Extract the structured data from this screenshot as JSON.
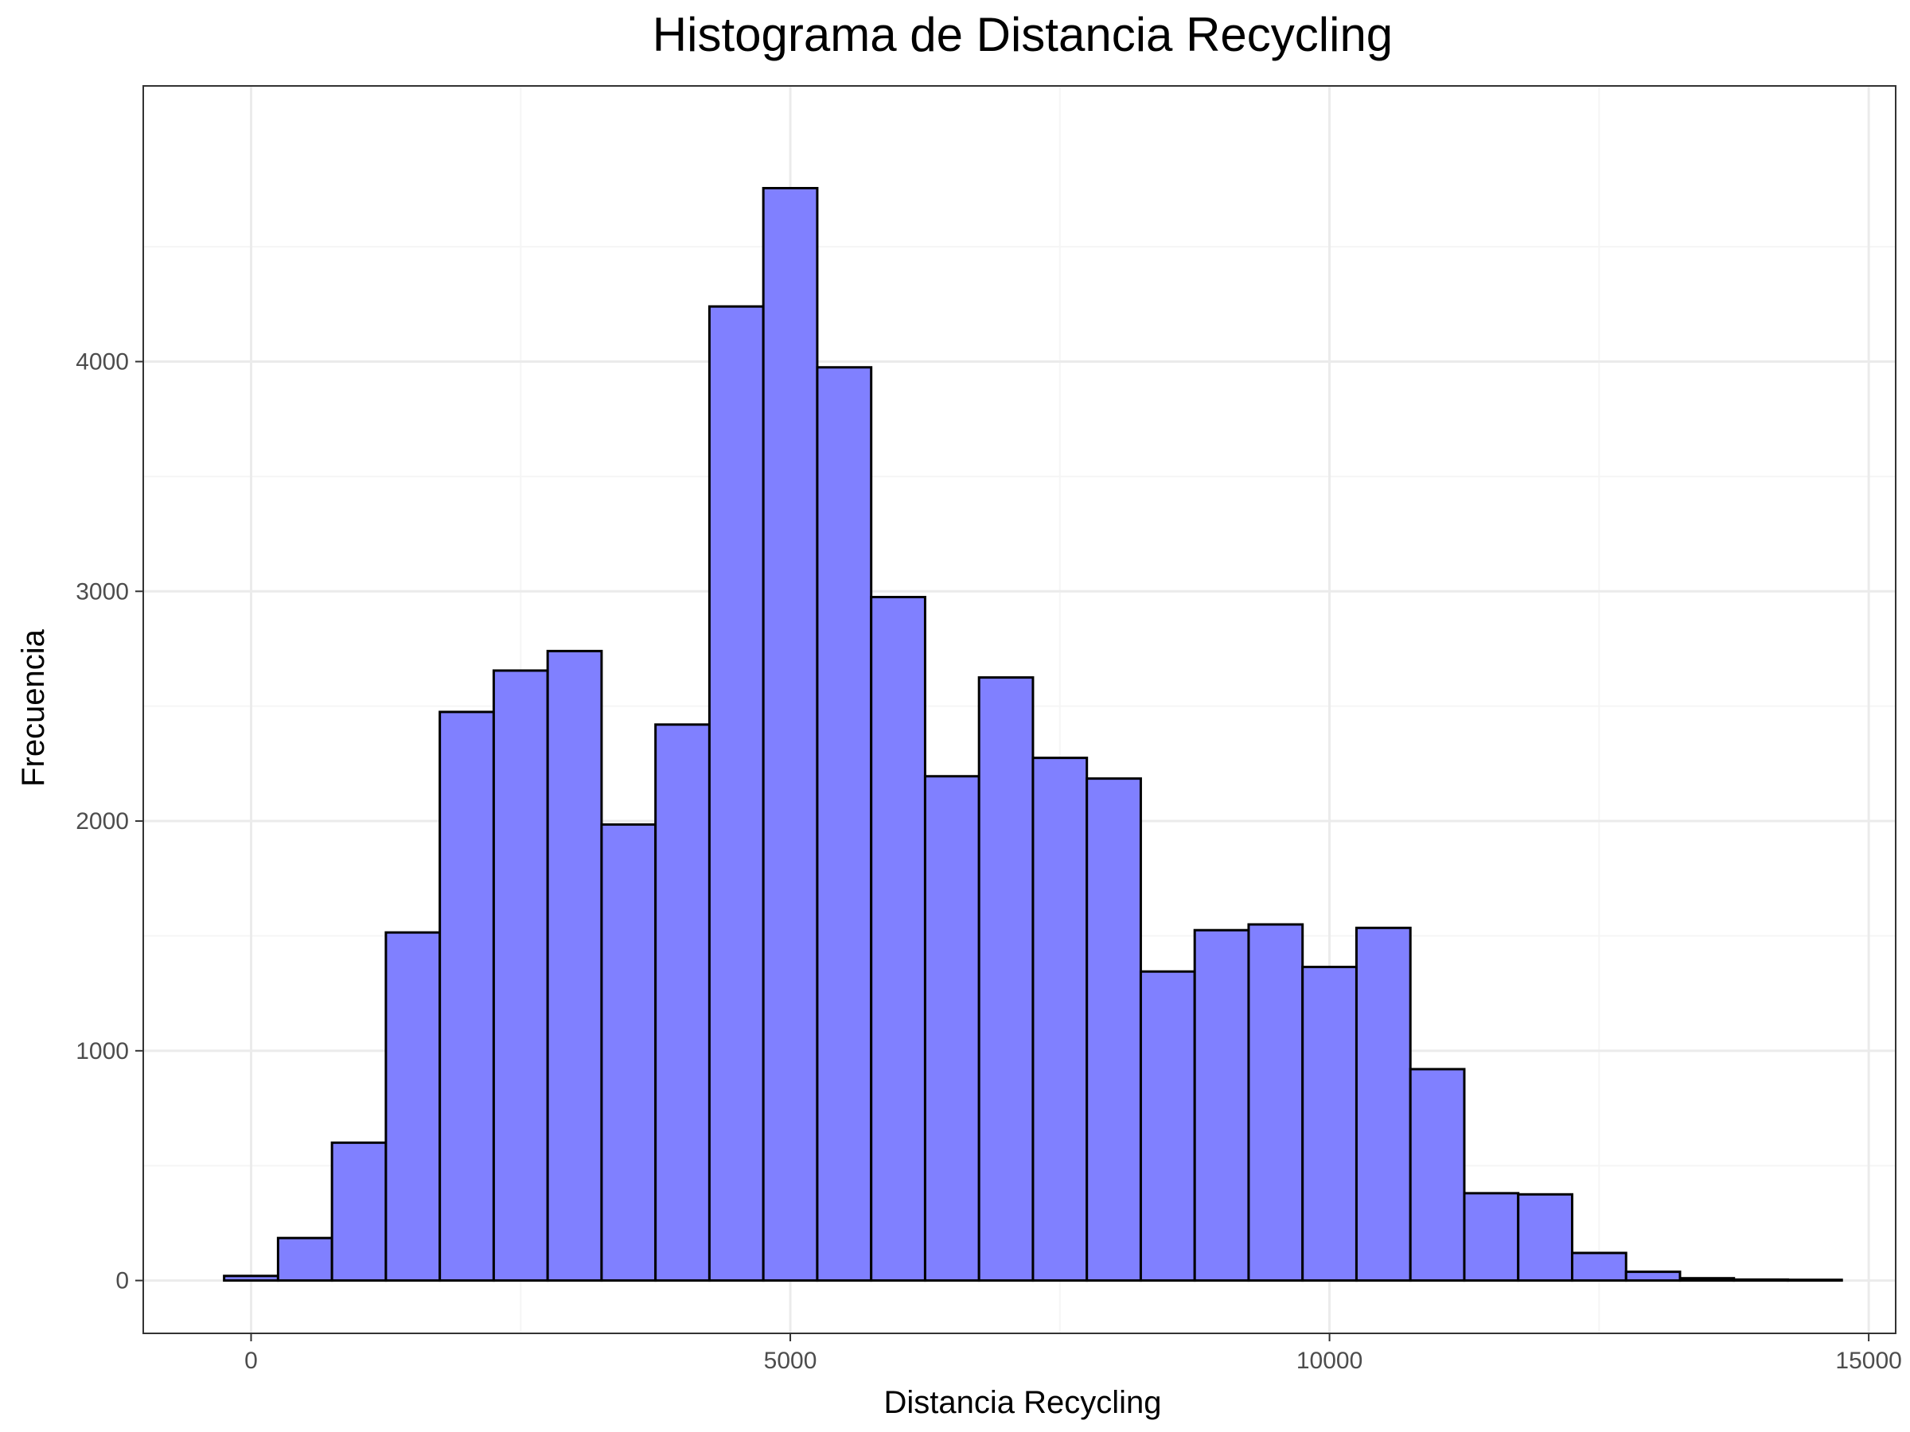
{
  "chart_data": {
    "type": "bar",
    "title": "Histograma de Distancia Recycling",
    "xlabel": "Distancia Recycling",
    "ylabel": "Frecuencia",
    "xlim": [
      -1000,
      15250
    ],
    "ylim": [
      -230,
      5200
    ],
    "x_ticks": [
      0,
      5000,
      10000,
      15000
    ],
    "y_ticks": [
      0,
      1000,
      2000,
      3000,
      4000
    ],
    "x_tick_labels": [
      "0",
      "5000",
      "10000",
      "15000"
    ],
    "y_tick_labels": [
      "0",
      "1000",
      "2000",
      "3000",
      "4000"
    ],
    "grid": true,
    "legend": "none",
    "bin_width": 500,
    "bins": [
      {
        "x_start": -250,
        "x_end": 250,
        "count": 20
      },
      {
        "x_start": 250,
        "x_end": 750,
        "count": 185
      },
      {
        "x_start": 750,
        "x_end": 1250,
        "count": 600
      },
      {
        "x_start": 1250,
        "x_end": 1750,
        "count": 1515
      },
      {
        "x_start": 1750,
        "x_end": 2250,
        "count": 2475
      },
      {
        "x_start": 2250,
        "x_end": 2750,
        "count": 2655
      },
      {
        "x_start": 2750,
        "x_end": 3250,
        "count": 2740
      },
      {
        "x_start": 3250,
        "x_end": 3750,
        "count": 1985
      },
      {
        "x_start": 3750,
        "x_end": 4250,
        "count": 2420
      },
      {
        "x_start": 4250,
        "x_end": 4750,
        "count": 4240
      },
      {
        "x_start": 4750,
        "x_end": 5250,
        "count": 4755
      },
      {
        "x_start": 5250,
        "x_end": 5750,
        "count": 3975
      },
      {
        "x_start": 5750,
        "x_end": 6250,
        "count": 2975
      },
      {
        "x_start": 6250,
        "x_end": 6750,
        "count": 2195
      },
      {
        "x_start": 6750,
        "x_end": 7250,
        "count": 2625
      },
      {
        "x_start": 7250,
        "x_end": 7750,
        "count": 2275
      },
      {
        "x_start": 7750,
        "x_end": 8250,
        "count": 2185
      },
      {
        "x_start": 8250,
        "x_end": 8750,
        "count": 1345
      },
      {
        "x_start": 8750,
        "x_end": 9250,
        "count": 1525
      },
      {
        "x_start": 9250,
        "x_end": 9750,
        "count": 1550
      },
      {
        "x_start": 9750,
        "x_end": 10250,
        "count": 1365
      },
      {
        "x_start": 10250,
        "x_end": 10750,
        "count": 1535
      },
      {
        "x_start": 10750,
        "x_end": 11250,
        "count": 920
      },
      {
        "x_start": 11250,
        "x_end": 11750,
        "count": 380
      },
      {
        "x_start": 11750,
        "x_end": 12250,
        "count": 375
      },
      {
        "x_start": 12250,
        "x_end": 12750,
        "count": 120
      },
      {
        "x_start": 12750,
        "x_end": 13250,
        "count": 38
      },
      {
        "x_start": 13250,
        "x_end": 13750,
        "count": 10
      },
      {
        "x_start": 13750,
        "x_end": 14250,
        "count": 4
      },
      {
        "x_start": 14250,
        "x_end": 14750,
        "count": 3
      }
    ],
    "colors": {
      "bar_fill": "#8080ff",
      "bar_outline": "#000000",
      "grid_major": "#ebebeb",
      "grid_minor": "#f5f5f5",
      "panel_border": "#333333",
      "tick_text": "#4d4d4d"
    }
  }
}
